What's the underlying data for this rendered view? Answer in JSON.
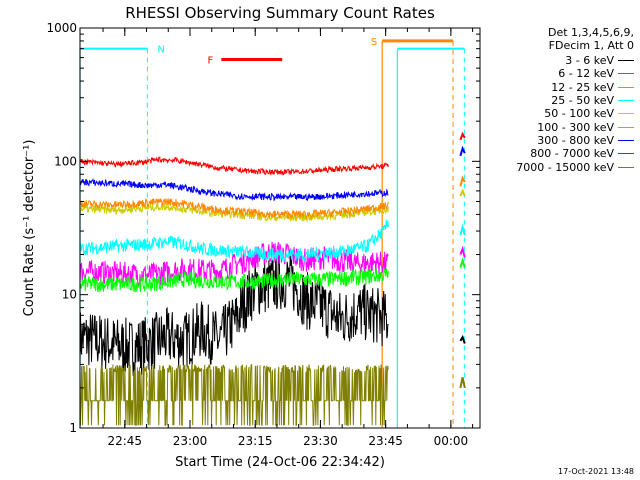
{
  "chart_data": {
    "type": "line",
    "title": "RHESSI Observing Summary Count Rates",
    "xlabel": "Start Time (24-Oct-06 22:34:42)",
    "ylabel": "Count Rate (s⁻¹ detector⁻¹)",
    "y_scale": "log",
    "ylim": [
      1,
      1000
    ],
    "xlim_minutes": [
      0,
      92
    ],
    "x_ticks": [
      {
        "label": "22:45",
        "minute": 10.3
      },
      {
        "label": "23:00",
        "minute": 25.3
      },
      {
        "label": "23:15",
        "minute": 40.3
      },
      {
        "label": "23:30",
        "minute": 55.3
      },
      {
        "label": "23:45",
        "minute": 70.3
      },
      {
        "label": "00:00",
        "minute": 85.3
      }
    ],
    "y_ticks": [
      {
        "label": "1",
        "value": 1
      },
      {
        "label": "10",
        "value": 10
      },
      {
        "label": "100",
        "value": 100
      },
      {
        "label": "1000",
        "value": 1000
      }
    ],
    "legend_header": [
      "Det 1,3,4,5,6,9,",
      "FDecim 1, Att 0"
    ],
    "series": [
      {
        "name": "3 - 6 keV",
        "color": "#000000",
        "values": [
          [
            0,
            4.8
          ],
          [
            4,
            4.5
          ],
          [
            8,
            4.2
          ],
          [
            12,
            4.0
          ],
          [
            16,
            4.3
          ],
          [
            20,
            4.8
          ],
          [
            24,
            4.5
          ],
          [
            28,
            5.5
          ],
          [
            32,
            4.5
          ],
          [
            36,
            6.5
          ],
          [
            40,
            11
          ],
          [
            44,
            12
          ],
          [
            48,
            13
          ],
          [
            52,
            9
          ],
          [
            56,
            8
          ],
          [
            60,
            6.5
          ],
          [
            64,
            7.5
          ],
          [
            68,
            7
          ],
          [
            71,
            6.3
          ]
        ],
        "late": [
          [
            87.5,
            4.5
          ],
          [
            88,
            4.8
          ],
          [
            88.5,
            4.3
          ]
        ]
      },
      {
        "name": "6 - 12 keV",
        "color": "#ff00ff",
        "values": [
          [
            0,
            15
          ],
          [
            8,
            14.5
          ],
          [
            16,
            14
          ],
          [
            24,
            15.5
          ],
          [
            32,
            15
          ],
          [
            36,
            17
          ],
          [
            40,
            19
          ],
          [
            44,
            21
          ],
          [
            48,
            20
          ],
          [
            52,
            18
          ],
          [
            56,
            19
          ],
          [
            60,
            18
          ],
          [
            64,
            17
          ],
          [
            68,
            17.5
          ],
          [
            71,
            17
          ]
        ],
        "late": [
          [
            87.5,
            20
          ],
          [
            88,
            22
          ],
          [
            88.5,
            19
          ]
        ]
      },
      {
        "name": "12 - 25 keV",
        "color": "#00ff00",
        "values": [
          [
            0,
            12
          ],
          [
            8,
            12
          ],
          [
            16,
            12
          ],
          [
            24,
            13
          ],
          [
            32,
            12.5
          ],
          [
            40,
            12.5
          ],
          [
            48,
            13
          ],
          [
            56,
            13
          ],
          [
            64,
            13.5
          ],
          [
            70,
            14
          ],
          [
            71,
            14
          ]
        ],
        "late": [
          [
            87.5,
            16
          ],
          [
            88,
            18
          ],
          [
            88.5,
            16
          ]
        ]
      },
      {
        "name": "25 - 50 keV",
        "color": "#00ffff",
        "values": [
          [
            0,
            22
          ],
          [
            8,
            23
          ],
          [
            16,
            24
          ],
          [
            20,
            25
          ],
          [
            24,
            24
          ],
          [
            28,
            22
          ],
          [
            36,
            21
          ],
          [
            44,
            20
          ],
          [
            52,
            20
          ],
          [
            60,
            21
          ],
          [
            66,
            23
          ],
          [
            70,
            30
          ],
          [
            71,
            36
          ]
        ],
        "late": [
          [
            87.5,
            28
          ],
          [
            88,
            32
          ],
          [
            88.5,
            28
          ]
        ]
      },
      {
        "name": "50 - 100 keV",
        "color": "#cccc00",
        "values": [
          [
            0,
            44
          ],
          [
            8,
            43
          ],
          [
            16,
            45
          ],
          [
            20,
            46
          ],
          [
            24,
            44
          ],
          [
            30,
            41
          ],
          [
            36,
            40
          ],
          [
            44,
            38
          ],
          [
            52,
            38
          ],
          [
            58,
            39
          ],
          [
            64,
            41
          ],
          [
            70,
            43
          ],
          [
            71,
            44
          ]
        ],
        "late": [
          [
            87.5,
            55
          ],
          [
            88,
            60
          ],
          [
            88.5,
            55
          ]
        ]
      },
      {
        "name": "100 - 300 keV",
        "color": "#ff8800",
        "values": [
          [
            0,
            48
          ],
          [
            8,
            47
          ],
          [
            16,
            49
          ],
          [
            20,
            50
          ],
          [
            24,
            48
          ],
          [
            30,
            44
          ],
          [
            36,
            42
          ],
          [
            44,
            40
          ],
          [
            52,
            40
          ],
          [
            58,
            41
          ],
          [
            64,
            43
          ],
          [
            70,
            46
          ],
          [
            71,
            47
          ]
        ],
        "late": [
          [
            87.5,
            65
          ],
          [
            88,
            75
          ],
          [
            88.5,
            70
          ]
        ]
      },
      {
        "name": "300 - 800 keV",
        "color": "#0000ff",
        "values": [
          [
            0,
            70
          ],
          [
            8,
            68
          ],
          [
            16,
            66
          ],
          [
            20,
            67
          ],
          [
            24,
            63
          ],
          [
            30,
            58
          ],
          [
            36,
            55
          ],
          [
            44,
            54
          ],
          [
            52,
            54
          ],
          [
            58,
            55
          ],
          [
            64,
            57
          ],
          [
            70,
            58
          ],
          [
            71,
            58
          ]
        ],
        "late": [
          [
            87.5,
            110
          ],
          [
            88,
            125
          ],
          [
            88.5,
            115
          ]
        ]
      },
      {
        "name": "800 - 7000 keV",
        "color": "#ff0000",
        "values": [
          [
            0,
            100
          ],
          [
            8,
            95
          ],
          [
            14,
            98
          ],
          [
            18,
            103
          ],
          [
            22,
            102
          ],
          [
            26,
            97
          ],
          [
            32,
            89
          ],
          [
            40,
            84
          ],
          [
            48,
            83
          ],
          [
            54,
            85
          ],
          [
            60,
            88
          ],
          [
            66,
            90
          ],
          [
            70,
            92
          ],
          [
            71,
            94
          ]
        ],
        "late": [
          [
            87.5,
            145
          ],
          [
            88,
            160
          ],
          [
            88.5,
            150
          ]
        ]
      },
      {
        "name": "7000 - 15000 keV",
        "color": "#808000",
        "values": [
          [
            0,
            1.6
          ],
          [
            8,
            1.7
          ],
          [
            16,
            2.0
          ],
          [
            20,
            2.5
          ],
          [
            24,
            1.8
          ],
          [
            32,
            1.6
          ],
          [
            40,
            1.8
          ],
          [
            48,
            1.6
          ],
          [
            56,
            1.7
          ],
          [
            64,
            2.0
          ],
          [
            71,
            2.2
          ]
        ],
        "late": [
          [
            87.5,
            2.0
          ],
          [
            88,
            2.4
          ],
          [
            88.5,
            2.0
          ]
        ]
      }
    ],
    "flags": [
      {
        "label": "N",
        "color": "#00ffff",
        "value": 700,
        "segments": [
          [
            0,
            15.5
          ],
          [
            73,
            88.4
          ]
        ],
        "vertical_lines_min": [
          0,
          73
        ],
        "dashed_lines_min": [
          15.5,
          88.4
        ]
      },
      {
        "label": "S",
        "color": "#ff8800",
        "value": 800,
        "segments": [
          [
            69.5,
            85.8
          ]
        ],
        "vertical_lines_min": [
          69.5
        ],
        "dashed_lines_min": [
          85.8
        ]
      },
      {
        "label": "F",
        "color": "#ff0000",
        "value": 580,
        "segments": [
          [
            32.5,
            46.5
          ]
        ]
      }
    ],
    "grid": false,
    "legend_placement": "right"
  },
  "footer": {
    "timestamp": "17-Oct-2021 13:48"
  }
}
